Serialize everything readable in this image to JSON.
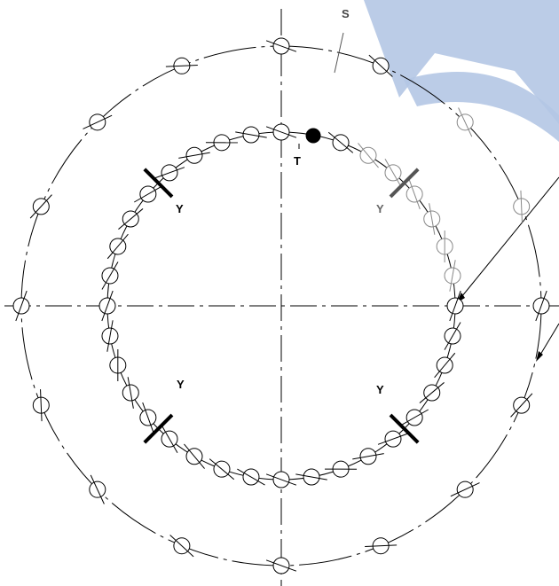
{
  "diagram": {
    "labels": {
      "s": "S",
      "t": "T",
      "y": "Y"
    },
    "colors": {
      "line": "#000000",
      "faded_line": "#888888",
      "brand_shape": "#b4c7e4",
      "filled_hole": "#000000"
    },
    "outer_circle": {
      "hole_count": 16,
      "tick_count": 4
    },
    "inner_circle": {
      "hole_count": 36,
      "filled_hole_count": 1,
      "y_marker_count": 4
    }
  }
}
